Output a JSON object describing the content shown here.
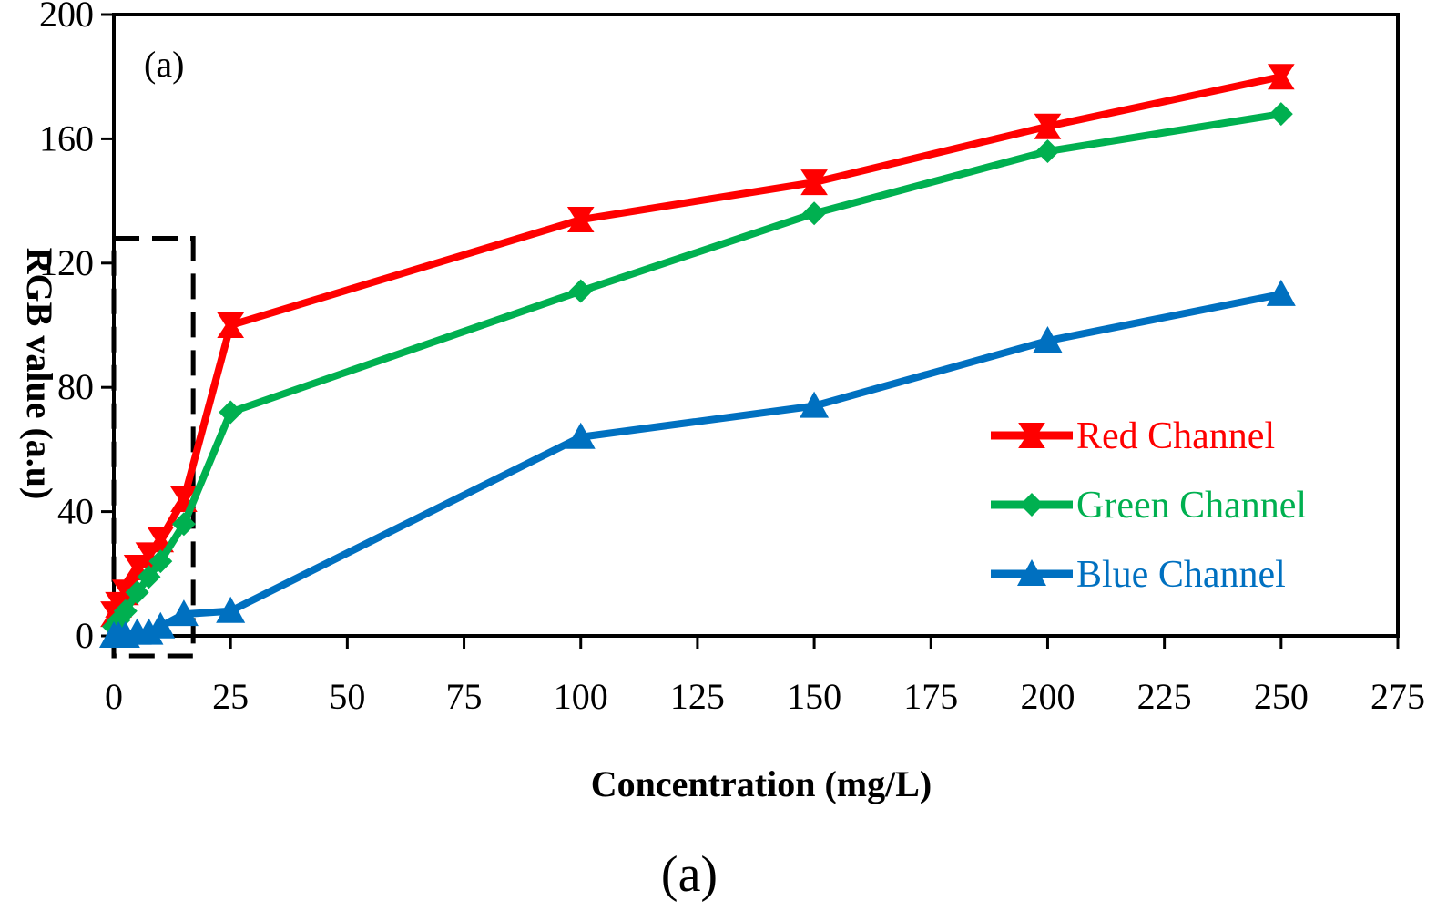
{
  "chart_data": {
    "type": "line",
    "panel_label": "(a)",
    "caption": "(a)",
    "xlabel": "Concentration (mg/L)",
    "ylabel": "RGB value (a.u)",
    "xlim": [
      0,
      275
    ],
    "ylim": [
      0,
      200
    ],
    "x_ticks": [
      0,
      25,
      50,
      75,
      100,
      125,
      150,
      175,
      200,
      225,
      250,
      275
    ],
    "y_ticks": [
      0,
      40,
      80,
      120,
      160,
      200
    ],
    "grid": false,
    "legend_position": "right",
    "x": [
      0,
      1,
      2.5,
      5,
      7.5,
      10,
      15,
      25,
      100,
      150,
      200,
      250
    ],
    "series": [
      {
        "name": "Red Channel",
        "color": "#ff0000",
        "marker": "bowtie",
        "values": [
          7,
          10,
          14,
          22,
          26,
          31,
          44,
          100,
          134,
          146,
          164,
          180
        ]
      },
      {
        "name": "Green Channel",
        "color": "#00b050",
        "marker": "diamond",
        "values": [
          3,
          5,
          8,
          14,
          19,
          24,
          36,
          72,
          111,
          136,
          156,
          168
        ]
      },
      {
        "name": "Blue Channel",
        "color": "#0070c0",
        "marker": "triangle",
        "values": [
          0,
          0,
          0,
          1,
          1,
          3,
          7,
          8,
          64,
          74,
          95,
          110
        ]
      }
    ],
    "highlight_box": {
      "x": [
        0,
        17
      ],
      "y": [
        0,
        128
      ],
      "style": "dashed"
    }
  }
}
